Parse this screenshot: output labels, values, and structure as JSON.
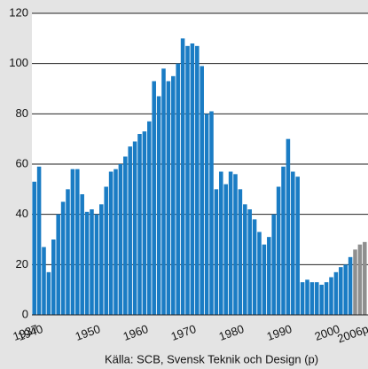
{
  "chart_data": {
    "type": "bar",
    "categories": [
      "1937",
      "1940",
      null,
      null,
      null,
      null,
      null,
      null,
      null,
      null,
      null,
      null,
      null,
      "1950",
      null,
      null,
      null,
      null,
      null,
      null,
      null,
      null,
      null,
      "1960",
      null,
      null,
      null,
      null,
      null,
      null,
      null,
      null,
      null,
      "1970",
      null,
      null,
      null,
      null,
      null,
      null,
      null,
      null,
      null,
      "1980",
      null,
      null,
      null,
      null,
      null,
      null,
      null,
      null,
      null,
      "1990",
      null,
      null,
      null,
      null,
      null,
      null,
      null,
      null,
      null,
      "2000",
      null,
      null,
      null,
      null,
      null,
      "2006p"
    ],
    "values": [
      53,
      59,
      27,
      17,
      30,
      40,
      45,
      50,
      58,
      58,
      48,
      41,
      42,
      40,
      44,
      51,
      57,
      58,
      60,
      63,
      67,
      69,
      72,
      73,
      77,
      93,
      87,
      98,
      93,
      95,
      100,
      110,
      107,
      108,
      107,
      99,
      80,
      81,
      50,
      57,
      52,
      57,
      56,
      50,
      44,
      42,
      38,
      33,
      28,
      31,
      40,
      51,
      59,
      70,
      57,
      55,
      13,
      14,
      13,
      13,
      12,
      13,
      15,
      17,
      19,
      20,
      23,
      26,
      28,
      29
    ],
    "colors": [
      "#1a7cc4",
      "#1a7cc4",
      "#1a7cc4",
      "#1a7cc4",
      "#1a7cc4",
      "#1a7cc4",
      "#1a7cc4",
      "#1a7cc4",
      "#1a7cc4",
      "#1a7cc4",
      "#1a7cc4",
      "#1a7cc4",
      "#1a7cc4",
      "#1a7cc4",
      "#1a7cc4",
      "#1a7cc4",
      "#1a7cc4",
      "#1a7cc4",
      "#1a7cc4",
      "#1a7cc4",
      "#1a7cc4",
      "#1a7cc4",
      "#1a7cc4",
      "#1a7cc4",
      "#1a7cc4",
      "#1a7cc4",
      "#1a7cc4",
      "#1a7cc4",
      "#1a7cc4",
      "#1a7cc4",
      "#1a7cc4",
      "#1a7cc4",
      "#1a7cc4",
      "#1a7cc4",
      "#1a7cc4",
      "#1a7cc4",
      "#1a7cc4",
      "#1a7cc4",
      "#1a7cc4",
      "#1a7cc4",
      "#1a7cc4",
      "#1a7cc4",
      "#1a7cc4",
      "#1a7cc4",
      "#1a7cc4",
      "#1a7cc4",
      "#1a7cc4",
      "#1a7cc4",
      "#1a7cc4",
      "#1a7cc4",
      "#1a7cc4",
      "#1a7cc4",
      "#1a7cc4",
      "#1a7cc4",
      "#1a7cc4",
      "#1a7cc4",
      "#1a7cc4",
      "#1a7cc4",
      "#1a7cc4",
      "#1a7cc4",
      "#1a7cc4",
      "#1a7cc4",
      "#1a7cc4",
      "#1a7cc4",
      "#1a7cc4",
      "#1a7cc4",
      "#1a7cc4",
      "#8f8f8f",
      "#8f8f8f",
      "#8f8f8f"
    ],
    "ylim": [
      0,
      120
    ],
    "yticks": [
      0,
      20,
      40,
      60,
      80,
      100,
      120
    ],
    "grid": true,
    "source": "Källa: SCB, Svensk Teknik och Design (p)"
  }
}
